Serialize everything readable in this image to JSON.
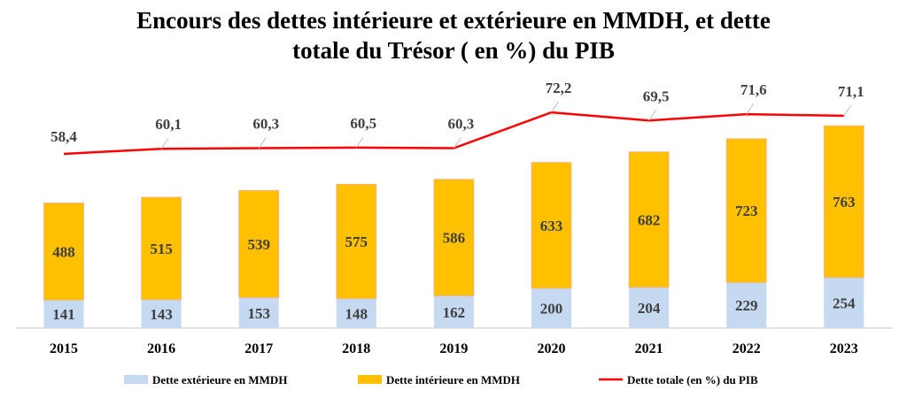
{
  "chart_data": {
    "type": "bar",
    "stacked": true,
    "title_line1": "Encours des dettes intérieure et extérieure en MMDH, et dette",
    "title_line2": "totale du Trésor ( en %) du PIB",
    "categories": [
      "2015",
      "2016",
      "2017",
      "2018",
      "2019",
      "2020",
      "2021",
      "2022",
      "2023"
    ],
    "series": [
      {
        "name": "Dette extérieure en MMDH",
        "type": "bar",
        "color": "#C5D9F1",
        "values": [
          141,
          143,
          153,
          148,
          162,
          200,
          204,
          229,
          254
        ]
      },
      {
        "name": "Dette intérieure en MMDH",
        "type": "bar",
        "color": "#FFC000",
        "values": [
          488,
          515,
          539,
          575,
          586,
          633,
          682,
          723,
          763
        ]
      },
      {
        "name": "Dette totale (en %) du PIB",
        "type": "line",
        "axis": "secondary",
        "color": "#FF0000",
        "values": [
          "58,4",
          "60,1",
          "60,3",
          "60,5",
          "60,3",
          "72,2",
          "69,5",
          "71,6",
          "71,1"
        ]
      }
    ],
    "legend_position": "bottom",
    "grid": false
  }
}
